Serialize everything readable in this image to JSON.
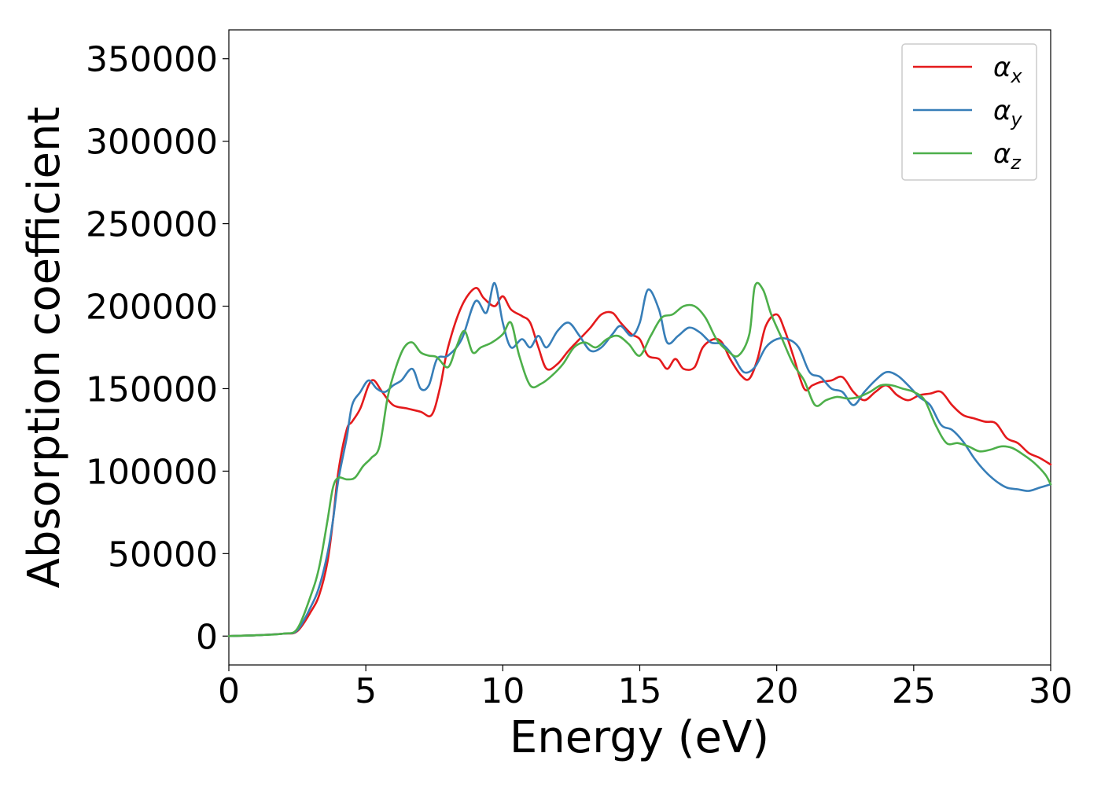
{
  "chart_data": {
    "type": "line",
    "xlabel": "Energy (eV)",
    "ylabel": "Absorption coefficient",
    "xlim": [
      0,
      30
    ],
    "ylim": [
      -17500,
      367500
    ],
    "xticks": [
      0,
      5,
      10,
      15,
      20,
      25,
      30
    ],
    "xtick_labels": [
      "0",
      "5",
      "10",
      "15",
      "20",
      "25",
      "30"
    ],
    "yticks": [
      0,
      50000,
      100000,
      150000,
      200000,
      250000,
      300000,
      350000
    ],
    "ytick_labels": [
      "0",
      "50000",
      "100000",
      "150000",
      "200000",
      "250000",
      "300000",
      "350000"
    ],
    "grid": false,
    "legend_position": "top-right",
    "series": [
      {
        "name": "α_x",
        "label_main": "α",
        "label_sub": "x",
        "color": "#e41a1c",
        "x": [
          0,
          1,
          2,
          2.5,
          3,
          3.3,
          3.6,
          3.8,
          4,
          4.3,
          4.5,
          4.8,
          5.1,
          5.3,
          5.6,
          6,
          6.5,
          7,
          7.4,
          7.7,
          8,
          8.5,
          9,
          9.3,
          9.7,
          10,
          10.3,
          10.7,
          11,
          11.3,
          11.6,
          12,
          12.4,
          12.8,
          13.2,
          13.6,
          14,
          14.3,
          14.7,
          15,
          15.3,
          15.7,
          16,
          16.3,
          16.6,
          17,
          17.3,
          17.7,
          18,
          18.3,
          18.7,
          19,
          19.3,
          19.6,
          20,
          20.3,
          20.6,
          21,
          21.3,
          21.6,
          22,
          22.4,
          22.8,
          23.2,
          23.6,
          24,
          24.4,
          24.8,
          25.2,
          25.6,
          26,
          26.4,
          26.8,
          27.2,
          27.6,
          28,
          28.4,
          28.8,
          29.2,
          29.6,
          30
        ],
        "y": [
          0,
          500,
          1500,
          3000,
          15000,
          25000,
          45000,
          70000,
          100000,
          125000,
          130000,
          138000,
          152000,
          155000,
          148000,
          140000,
          138000,
          136000,
          134000,
          150000,
          175000,
          200000,
          211000,
          205000,
          200000,
          206000,
          198000,
          194000,
          190000,
          175000,
          162000,
          165000,
          173000,
          180000,
          187000,
          195000,
          196000,
          190000,
          183000,
          180000,
          170000,
          168000,
          162000,
          168000,
          162000,
          163000,
          175000,
          180000,
          178000,
          168000,
          158000,
          156000,
          168000,
          188000,
          195000,
          185000,
          170000,
          150000,
          152000,
          154000,
          155000,
          157000,
          148000,
          143000,
          148000,
          152000,
          146000,
          143000,
          146000,
          147000,
          148000,
          140000,
          134000,
          132000,
          130000,
          129000,
          120000,
          117000,
          111000,
          108000,
          104000
        ]
      },
      {
        "name": "α_y",
        "label_main": "α",
        "label_sub": "y",
        "color": "#377eb8",
        "x": [
          0,
          1,
          2,
          2.5,
          3,
          3.3,
          3.6,
          3.8,
          4,
          4.3,
          4.5,
          4.8,
          5.1,
          5.4,
          5.7,
          6,
          6.3,
          6.7,
          7,
          7.3,
          7.6,
          8,
          8.5,
          9,
          9.4,
          9.7,
          10,
          10.3,
          10.7,
          11,
          11.3,
          11.6,
          12,
          12.4,
          12.8,
          13.2,
          13.6,
          14,
          14.3,
          14.7,
          15,
          15.3,
          15.7,
          16,
          16.4,
          16.8,
          17.2,
          17.6,
          18,
          18.4,
          18.8,
          19.2,
          19.6,
          20,
          20.4,
          20.8,
          21.2,
          21.6,
          22,
          22.4,
          22.8,
          23.2,
          23.6,
          24,
          24.4,
          24.8,
          25.2,
          25.6,
          26,
          26.4,
          26.8,
          27.2,
          27.6,
          28,
          28.4,
          28.8,
          29.2,
          29.6,
          30
        ],
        "y": [
          0,
          500,
          1500,
          3500,
          18000,
          30000,
          50000,
          70000,
          95000,
          120000,
          140000,
          148000,
          155000,
          150000,
          148000,
          152000,
          155000,
          162000,
          150000,
          152000,
          168000,
          170000,
          180000,
          203000,
          196000,
          214000,
          190000,
          175000,
          180000,
          175000,
          182000,
          175000,
          185000,
          190000,
          182000,
          173000,
          175000,
          183000,
          188000,
          182000,
          190000,
          210000,
          198000,
          178000,
          182000,
          187000,
          184000,
          178000,
          177000,
          170000,
          160000,
          163000,
          175000,
          180000,
          180000,
          175000,
          160000,
          157000,
          150000,
          148000,
          140000,
          148000,
          155000,
          160000,
          158000,
          152000,
          145000,
          140000,
          128000,
          125000,
          118000,
          108000,
          100000,
          94000,
          90000,
          89000,
          88000,
          90000,
          92000
        ]
      },
      {
        "name": "α_z",
        "label_main": "α",
        "label_sub": "z",
        "color": "#4daf4a",
        "x": [
          0,
          1,
          2,
          2.5,
          3,
          3.3,
          3.6,
          3.8,
          4,
          4.3,
          4.6,
          4.9,
          5.2,
          5.5,
          5.8,
          6.1,
          6.4,
          6.7,
          7,
          7.3,
          7.6,
          8,
          8.3,
          8.6,
          8.9,
          9.2,
          9.6,
          10,
          10.3,
          10.6,
          11,
          11.4,
          11.8,
          12.2,
          12.6,
          13,
          13.4,
          13.8,
          14.2,
          14.6,
          15,
          15.4,
          15.8,
          16.2,
          16.6,
          17,
          17.4,
          17.8,
          18.2,
          18.6,
          19,
          19.2,
          19.5,
          19.8,
          20.2,
          20.6,
          21,
          21.4,
          21.8,
          22.2,
          22.6,
          23,
          23.4,
          23.8,
          24.2,
          24.6,
          25,
          25.4,
          25.8,
          26.2,
          26.6,
          27,
          27.4,
          27.8,
          28.2,
          28.6,
          29,
          29.4,
          29.8,
          30
        ],
        "y": [
          0,
          500,
          1500,
          4500,
          25000,
          42000,
          70000,
          90000,
          96000,
          95000,
          96000,
          103000,
          108000,
          115000,
          145000,
          163000,
          175000,
          178000,
          172000,
          170000,
          169000,
          163000,
          175000,
          185000,
          172000,
          175000,
          178000,
          183000,
          190000,
          170000,
          152000,
          153000,
          158000,
          165000,
          175000,
          178000,
          175000,
          180000,
          182000,
          177000,
          170000,
          182000,
          193000,
          195000,
          200000,
          200000,
          193000,
          180000,
          173000,
          170000,
          183000,
          212000,
          210000,
          195000,
          180000,
          165000,
          155000,
          140000,
          143000,
          145000,
          144000,
          145000,
          148000,
          152000,
          152000,
          150000,
          148000,
          143000,
          128000,
          117000,
          117000,
          115000,
          112000,
          113000,
          115000,
          114000,
          110000,
          105000,
          98000,
          92000
        ]
      }
    ]
  }
}
